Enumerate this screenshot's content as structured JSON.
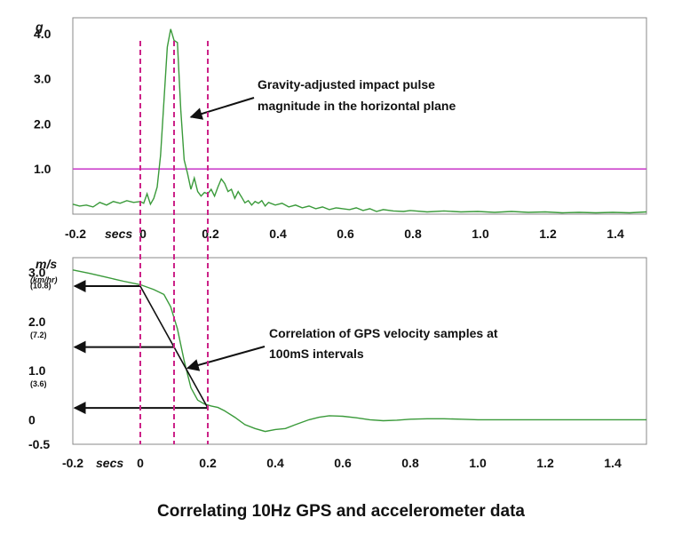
{
  "caption": "Correlating 10Hz GPS and accelerometer data",
  "colors": {
    "signal": "#3a9a3a",
    "threshold": "#cc44cc",
    "marker": "#cc2288",
    "arrow": "#111111",
    "frame": "#888888"
  },
  "chart_data": [
    {
      "type": "line",
      "title": "",
      "ylabel": "g",
      "x_tick_labels": [
        "-0.2",
        "0",
        "0.2",
        "0.4",
        "0.6",
        "0.8",
        "1.0",
        "1.2",
        "1.4"
      ],
      "x_tick_values": [
        -0.2,
        0,
        0.2,
        0.4,
        0.6,
        0.8,
        1.0,
        1.2,
        1.4
      ],
      "x_unit_label": "secs",
      "y_tick_labels": [
        "4.0",
        "3.0",
        "2.0",
        "1.0"
      ],
      "y_tick_values": [
        4.0,
        3.0,
        2.0,
        1.0
      ],
      "xlim": [
        -0.2,
        1.5
      ],
      "ylim": [
        0,
        4.35
      ],
      "reference_line": {
        "y": 1.0
      },
      "annotation": {
        "lines": [
          "Gravity-adjusted impact pulse",
          "magnitude in the horizontal plane"
        ],
        "points_to": {
          "x": 0.15,
          "y": 2.15
        }
      },
      "series": [
        {
          "x": [
            -0.2,
            -0.18,
            -0.16,
            -0.14,
            -0.12,
            -0.1,
            -0.08,
            -0.06,
            -0.04,
            -0.02,
            0.0,
            0.01,
            0.02,
            0.03,
            0.04,
            0.05,
            0.06,
            0.07,
            0.08,
            0.09,
            0.1,
            0.11,
            0.12,
            0.13,
            0.14,
            0.15,
            0.16,
            0.17,
            0.18,
            0.19,
            0.2,
            0.21,
            0.22,
            0.23,
            0.24,
            0.25,
            0.26,
            0.27,
            0.28,
            0.29,
            0.3,
            0.31,
            0.32,
            0.33,
            0.34,
            0.35,
            0.36,
            0.37,
            0.38,
            0.4,
            0.42,
            0.44,
            0.46,
            0.48,
            0.5,
            0.52,
            0.54,
            0.56,
            0.58,
            0.6,
            0.62,
            0.64,
            0.66,
            0.68,
            0.7,
            0.72,
            0.75,
            0.78,
            0.8,
            0.85,
            0.9,
            0.95,
            1.0,
            1.05,
            1.1,
            1.15,
            1.2,
            1.25,
            1.3,
            1.35,
            1.4,
            1.45,
            1.5
          ],
          "y": [
            0.22,
            0.18,
            0.2,
            0.16,
            0.26,
            0.2,
            0.28,
            0.24,
            0.3,
            0.26,
            0.28,
            0.24,
            0.45,
            0.22,
            0.35,
            0.6,
            1.3,
            2.5,
            3.7,
            4.1,
            3.85,
            3.8,
            2.3,
            1.2,
            0.9,
            0.55,
            0.8,
            0.5,
            0.4,
            0.48,
            0.45,
            0.55,
            0.4,
            0.6,
            0.78,
            0.68,
            0.5,
            0.55,
            0.35,
            0.5,
            0.38,
            0.25,
            0.3,
            0.2,
            0.28,
            0.24,
            0.3,
            0.18,
            0.26,
            0.2,
            0.24,
            0.16,
            0.2,
            0.14,
            0.18,
            0.12,
            0.16,
            0.1,
            0.14,
            0.12,
            0.1,
            0.14,
            0.08,
            0.12,
            0.06,
            0.1,
            0.07,
            0.06,
            0.08,
            0.05,
            0.07,
            0.05,
            0.06,
            0.04,
            0.06,
            0.04,
            0.05,
            0.03,
            0.04,
            0.03,
            0.04,
            0.03,
            0.05
          ]
        }
      ]
    },
    {
      "type": "line",
      "title": "",
      "ylabel": "m/s",
      "ylabel_sub": "(km/hr)",
      "x_tick_labels": [
        "-0.2",
        "0",
        "0.2",
        "0.4",
        "0.6",
        "0.8",
        "1.0",
        "1.2",
        "1.4"
      ],
      "x_tick_values": [
        -0.2,
        0,
        0.2,
        0.4,
        0.6,
        0.8,
        1.0,
        1.2,
        1.4
      ],
      "x_unit_label": "secs",
      "y_tick_labels": [
        "3.0",
        "2.0",
        "1.0",
        "0",
        "-0.5"
      ],
      "y_tick_values": [
        3.0,
        2.0,
        1.0,
        0,
        -0.5
      ],
      "y_tick_sublabels": [
        "(10.8)",
        "(7.2)",
        "(3.6)",
        "",
        ""
      ],
      "xlim": [
        -0.2,
        1.5
      ],
      "ylim": [
        -0.5,
        3.3
      ],
      "gps_samples": [
        {
          "x": 0.0,
          "y": 2.72
        },
        {
          "x": 0.1,
          "y": 1.48
        },
        {
          "x": 0.2,
          "y": 0.24
        }
      ],
      "annotation": {
        "lines": [
          "Correlation of GPS velocity samples at",
          "100mS intervals"
        ],
        "points_to": {
          "x": 0.14,
          "y": 1.05
        }
      },
      "series": [
        {
          "x": [
            -0.2,
            -0.15,
            -0.1,
            -0.05,
            0.0,
            0.04,
            0.07,
            0.09,
            0.11,
            0.13,
            0.15,
            0.17,
            0.19,
            0.21,
            0.23,
            0.25,
            0.28,
            0.31,
            0.34,
            0.37,
            0.4,
            0.43,
            0.46,
            0.5,
            0.53,
            0.56,
            0.6,
            0.64,
            0.68,
            0.72,
            0.76,
            0.8,
            0.85,
            0.9,
            0.95,
            1.0,
            1.1,
            1.2,
            1.3,
            1.4,
            1.5
          ],
          "y": [
            3.05,
            2.98,
            2.9,
            2.82,
            2.75,
            2.65,
            2.55,
            2.3,
            1.85,
            1.2,
            0.65,
            0.4,
            0.32,
            0.28,
            0.25,
            0.18,
            0.05,
            -0.1,
            -0.18,
            -0.24,
            -0.2,
            -0.18,
            -0.1,
            0.0,
            0.05,
            0.08,
            0.07,
            0.04,
            0.0,
            -0.02,
            -0.01,
            0.01,
            0.02,
            0.02,
            0.01,
            0.0,
            0.0,
            0.0,
            0.0,
            0.0,
            0.0
          ]
        }
      ]
    }
  ]
}
